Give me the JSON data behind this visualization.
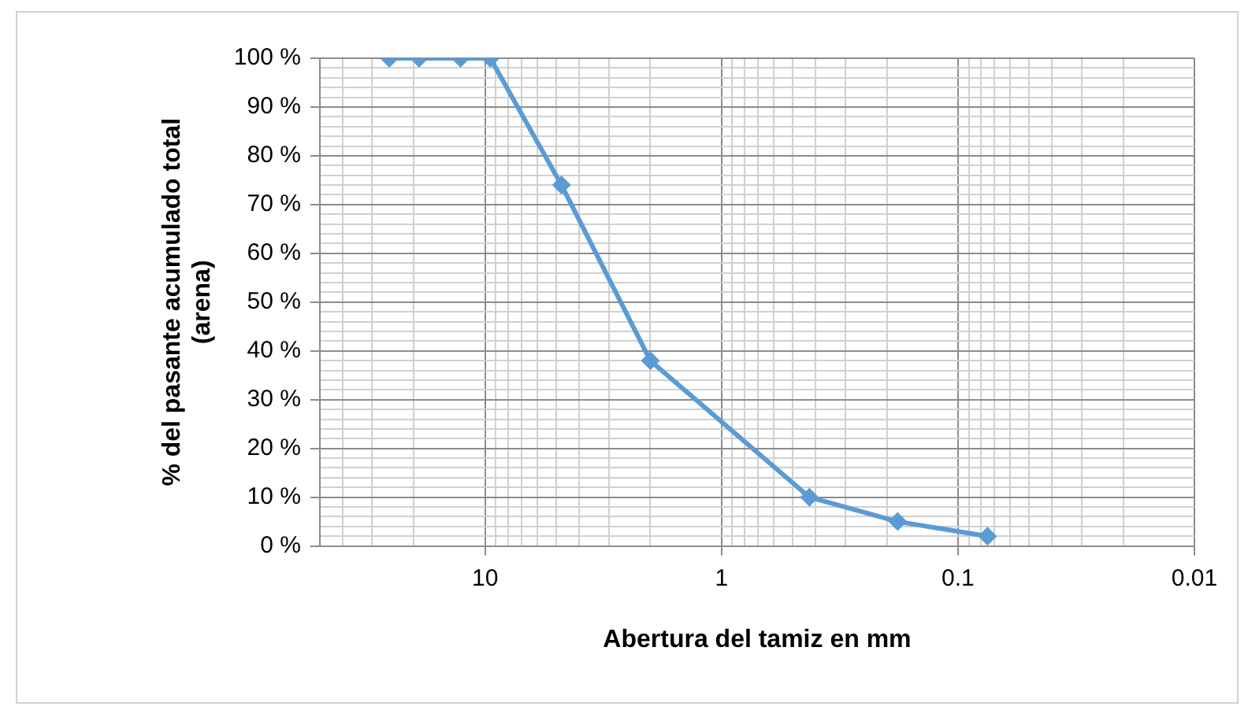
{
  "chart_data": {
    "type": "line",
    "xlabel": "Abertura del tamiz en mm",
    "ylabel": "% del pasante acumulado total (arena)",
    "x": [
      25.4,
      19.0,
      12.7,
      9.5,
      4.75,
      2.0,
      0.425,
      0.18,
      0.075
    ],
    "series": [
      {
        "color": "#5b9bd5",
        "values": [
          100,
          100,
          100,
          100,
          74,
          38,
          10,
          5,
          2
        ]
      }
    ],
    "log": "x",
    "xlim": [
      50,
      0.01
    ],
    "xticks": [
      {
        "value": 50,
        "label": null
      },
      {
        "value": 40,
        "label": null
      },
      {
        "value": 30,
        "label": null
      },
      {
        "value": 20,
        "label": null
      },
      10,
      {
        "value": 9,
        "label": null
      },
      {
        "value": 8,
        "label": null
      },
      {
        "value": 7,
        "label": null
      },
      {
        "value": 6,
        "label": null
      },
      {
        "value": 5,
        "label": null
      },
      {
        "value": 4,
        "label": null
      },
      {
        "value": 3,
        "label": null
      },
      {
        "value": 2,
        "label": null
      },
      1,
      {
        "value": 0.9,
        "label": null
      },
      {
        "value": 0.8,
        "label": null
      },
      {
        "value": 0.7,
        "label": null
      },
      {
        "value": 0.6,
        "label": null
      },
      {
        "value": 0.5,
        "label": null
      },
      {
        "value": 0.4,
        "label": null
      },
      {
        "value": 0.3,
        "label": null
      },
      {
        "value": 0.2,
        "label": null
      },
      0.1,
      {
        "value": 0.09,
        "label": null
      },
      {
        "value": 0.08,
        "label": null
      },
      {
        "value": 0.07,
        "label": null
      },
      {
        "value": 0.06,
        "label": null
      },
      {
        "value": 0.05,
        "label": null
      },
      {
        "value": 0.04,
        "label": null
      },
      {
        "value": 0.03,
        "label": null
      },
      {
        "value": 0.02,
        "label": null
      },
      0.01
    ],
    "ylim": [
      0,
      100
    ],
    "yticks": [
      {
        "value": 0,
        "label": "0 %"
      },
      {
        "value": 2,
        "label": null
      },
      {
        "value": 4,
        "label": null
      },
      {
        "value": 6,
        "label": null
      },
      {
        "value": 8,
        "label": null
      },
      {
        "value": 10,
        "label": "10 %"
      },
      {
        "value": 12,
        "label": null
      },
      {
        "value": 14,
        "label": null
      },
      {
        "value": 16,
        "label": null
      },
      {
        "value": 18,
        "label": null
      },
      {
        "value": 20,
        "label": "20 %"
      },
      {
        "value": 22,
        "label": null
      },
      {
        "value": 24,
        "label": null
      },
      {
        "value": 26,
        "label": null
      },
      {
        "value": 28,
        "label": null
      },
      {
        "value": 30,
        "label": "30 %"
      },
      {
        "value": 32,
        "label": null
      },
      {
        "value": 34,
        "label": null
      },
      {
        "value": 36,
        "label": null
      },
      {
        "value": 38,
        "label": null
      },
      {
        "value": 40,
        "label": "40 %"
      },
      {
        "value": 42,
        "label": null
      },
      {
        "value": 44,
        "label": null
      },
      {
        "value": 46,
        "label": null
      },
      {
        "value": 48,
        "label": null
      },
      {
        "value": 50,
        "label": "50 %"
      },
      {
        "value": 52,
        "label": null
      },
      {
        "value": 54,
        "label": null
      },
      {
        "value": 56,
        "label": null
      },
      {
        "value": 58,
        "label": null
      },
      {
        "value": 60,
        "label": "60 %"
      },
      {
        "value": 62,
        "label": null
      },
      {
        "value": 64,
        "label": null
      },
      {
        "value": 66,
        "label": null
      },
      {
        "value": 68,
        "label": null
      },
      {
        "value": 70,
        "label": "70 %"
      },
      {
        "value": 72,
        "label": null
      },
      {
        "value": 74,
        "label": null
      },
      {
        "value": 76,
        "label": null
      },
      {
        "value": 78,
        "label": null
      },
      {
        "value": 80,
        "label": "80 %"
      },
      {
        "value": 82,
        "label": null
      },
      {
        "value": 84,
        "label": null
      },
      {
        "value": 86,
        "label": null
      },
      {
        "value": 88,
        "label": null
      },
      {
        "value": 90,
        "label": "90 %"
      },
      {
        "value": 92,
        "label": null
      },
      {
        "value": 94,
        "label": null
      },
      {
        "value": 96,
        "label": null
      },
      {
        "value": 98,
        "label": null
      },
      {
        "value": 100,
        "label": "100 %"
      }
    ],
    "grid": true,
    "legend": false,
    "marker": "diamond",
    "line_style": "solid"
  }
}
